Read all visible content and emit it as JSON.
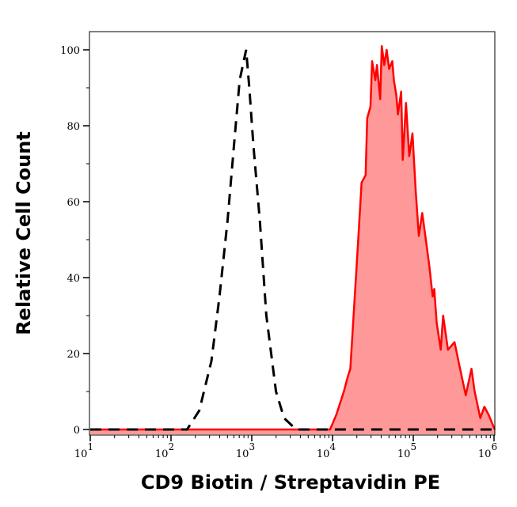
{
  "chart_data": {
    "type": "area",
    "xlabel": "CD9 Biotin / Streptavidin PE",
    "ylabel": "Relative Cell Count",
    "xscale": "log",
    "xlim": [
      10,
      1000000
    ],
    "ylim": [
      0,
      100
    ],
    "grid": false,
    "x_ticks": [
      {
        "base": "10",
        "exp": "1",
        "value": 10
      },
      {
        "base": "10",
        "exp": "2",
        "value": 100
      },
      {
        "base": "10",
        "exp": "3",
        "value": 1000
      },
      {
        "base": "10",
        "exp": "4",
        "value": 10000
      },
      {
        "base": "10",
        "exp": "5",
        "value": 100000
      },
      {
        "base": "10",
        "exp": "6",
        "value": 1000000
      }
    ],
    "y_ticks": [
      "0",
      "20",
      "40",
      "60",
      "80",
      "100"
    ],
    "series": [
      {
        "style": "dashed-line",
        "color": "#000000",
        "points": [
          [
            10,
            0
          ],
          [
            158,
            0
          ],
          [
            224,
            5
          ],
          [
            316,
            18
          ],
          [
            398,
            35
          ],
          [
            501,
            55
          ],
          [
            603,
            75
          ],
          [
            708,
            92
          ],
          [
            794,
            97
          ],
          [
            851,
            100
          ],
          [
            933,
            90
          ],
          [
            1047,
            75
          ],
          [
            1259,
            55
          ],
          [
            1514,
            30
          ],
          [
            1995,
            10
          ],
          [
            2512,
            3
          ],
          [
            3548,
            0
          ],
          [
            1000000,
            0
          ]
        ]
      },
      {
        "style": "filled",
        "color": "#ff0000",
        "fill": "#ff9999",
        "points": [
          [
            10,
            0
          ],
          [
            9330,
            0
          ],
          [
            11200,
            4
          ],
          [
            13800,
            10
          ],
          [
            15500,
            14
          ],
          [
            16600,
            16
          ],
          [
            20400,
            47
          ],
          [
            22900,
            65
          ],
          [
            25700,
            67
          ],
          [
            26900,
            82
          ],
          [
            29500,
            85
          ],
          [
            30900,
            97
          ],
          [
            33900,
            92
          ],
          [
            35500,
            96
          ],
          [
            38900,
            87
          ],
          [
            40700,
            101
          ],
          [
            43700,
            96
          ],
          [
            46800,
            100
          ],
          [
            50100,
            95
          ],
          [
            55000,
            97
          ],
          [
            57500,
            92
          ],
          [
            61700,
            88
          ],
          [
            64600,
            83
          ],
          [
            70800,
            89
          ],
          [
            74100,
            71
          ],
          [
            81300,
            86
          ],
          [
            89100,
            72
          ],
          [
            97700,
            78
          ],
          [
            107000,
            63
          ],
          [
            117000,
            51
          ],
          [
            129000,
            57
          ],
          [
            141000,
            51
          ],
          [
            158000,
            43
          ],
          [
            174000,
            35
          ],
          [
            182000,
            37
          ],
          [
            195000,
            28
          ],
          [
            219000,
            21
          ],
          [
            234000,
            30
          ],
          [
            269000,
            21
          ],
          [
            324000,
            23
          ],
          [
            380000,
            16
          ],
          [
            447000,
            9
          ],
          [
            525000,
            16
          ],
          [
            575000,
            10
          ],
          [
            676000,
            3
          ],
          [
            759000,
            6
          ],
          [
            851000,
            4
          ],
          [
            1020000,
            0
          ]
        ]
      }
    ]
  }
}
